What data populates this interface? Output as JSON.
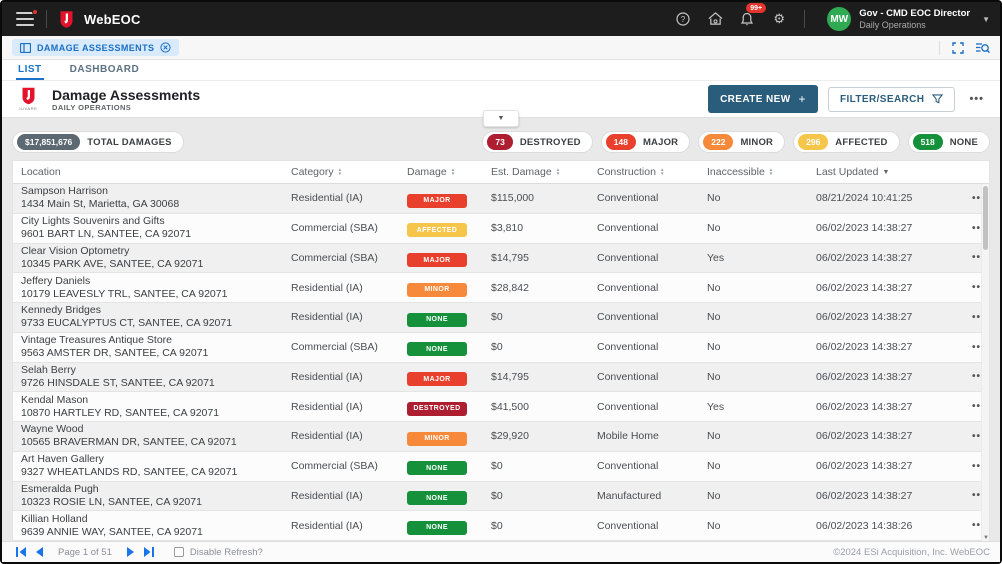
{
  "topbar": {
    "brand": "WebEOC",
    "notification_count": "99+",
    "user": {
      "initials": "MW",
      "name": "Gov - CMD EOC Director",
      "role": "Daily Operations"
    }
  },
  "board_tab": {
    "label": "DAMAGE ASSESSMENTS"
  },
  "view_tabs": {
    "list": "LIST",
    "dashboard": "DASHBOARD"
  },
  "header": {
    "logo_text": "JUVARE",
    "title": "Damage Assessments",
    "subtitle": "DAILY OPERATIONS",
    "create_button": "CREATE NEW",
    "create_plus": "+",
    "filter_button": "FILTER/SEARCH",
    "more_label": "•••"
  },
  "summary": {
    "total": {
      "value": "$17,851,676",
      "label": "TOTAL DAMAGES",
      "color": "#5c6872"
    },
    "counters": [
      {
        "count": "73",
        "label": "DESTROYED",
        "color": "#ad1e30"
      },
      {
        "count": "148",
        "label": "MAJOR",
        "color": "#e8402c"
      },
      {
        "count": "222",
        "label": "MINOR",
        "color": "#f6893a"
      },
      {
        "count": "296",
        "label": "AFFECTED",
        "color": "#f6c64a"
      },
      {
        "count": "518",
        "label": "NONE",
        "color": "#15913b"
      }
    ]
  },
  "damage_colors": {
    "DESTROYED": "#ad1e30",
    "MAJOR": "#e8402c",
    "MINOR": "#f6893a",
    "AFFECTED": "#f6c64a",
    "NONE": "#15913b"
  },
  "table": {
    "columns": [
      {
        "label": "Location",
        "sort": "none"
      },
      {
        "label": "Category",
        "sort": "both"
      },
      {
        "label": "Damage",
        "sort": "both"
      },
      {
        "label": "Est. Damage",
        "sort": "both"
      },
      {
        "label": "Construction",
        "sort": "both"
      },
      {
        "label": "Inaccessible",
        "sort": "both"
      },
      {
        "label": "Last Updated",
        "sort": "desc"
      }
    ],
    "row_menu_label": "•••",
    "rows": [
      {
        "name": "Sampson Harrison",
        "address": "1434 Main St, Marietta, GA 30068",
        "category": "Residential (IA)",
        "damage": "MAJOR",
        "est_damage": "$115,000",
        "construction": "Conventional",
        "inaccessible": "No",
        "last_updated": "08/21/2024 10:41:25"
      },
      {
        "name": "City Lights Souvenirs and Gifts",
        "address": "9601 BART LN, SANTEE, CA 92071",
        "category": "Commercial (SBA)",
        "damage": "AFFECTED",
        "est_damage": "$3,810",
        "construction": "Conventional",
        "inaccessible": "No",
        "last_updated": "06/02/2023 14:38:27"
      },
      {
        "name": "Clear Vision Optometry",
        "address": "10345 PARK AVE, SANTEE, CA 92071",
        "category": "Commercial (SBA)",
        "damage": "MAJOR",
        "est_damage": "$14,795",
        "construction": "Conventional",
        "inaccessible": "Yes",
        "last_updated": "06/02/2023 14:38:27"
      },
      {
        "name": "Jeffery Daniels",
        "address": "10179 LEAVESLY TRL, SANTEE, CA 92071",
        "category": "Residential (IA)",
        "damage": "MINOR",
        "est_damage": "$28,842",
        "construction": "Conventional",
        "inaccessible": "No",
        "last_updated": "06/02/2023 14:38:27"
      },
      {
        "name": "Kennedy Bridges",
        "address": "9733 EUCALYPTUS CT, SANTEE, CA 92071",
        "category": "Residential (IA)",
        "damage": "NONE",
        "est_damage": "$0",
        "construction": "Conventional",
        "inaccessible": "No",
        "last_updated": "06/02/2023 14:38:27"
      },
      {
        "name": "Vintage Treasures Antique Store",
        "address": "9563 AMSTER DR, SANTEE, CA 92071",
        "category": "Commercial (SBA)",
        "damage": "NONE",
        "est_damage": "$0",
        "construction": "Conventional",
        "inaccessible": "No",
        "last_updated": "06/02/2023 14:38:27"
      },
      {
        "name": "Selah Berry",
        "address": "9726 HINSDALE ST, SANTEE, CA 92071",
        "category": "Residential (IA)",
        "damage": "MAJOR",
        "est_damage": "$14,795",
        "construction": "Conventional",
        "inaccessible": "No",
        "last_updated": "06/02/2023 14:38:27"
      },
      {
        "name": "Kendal Mason",
        "address": "10870 HARTLEY RD, SANTEE, CA 92071",
        "category": "Residential (IA)",
        "damage": "DESTROYED",
        "est_damage": "$41,500",
        "construction": "Conventional",
        "inaccessible": "Yes",
        "last_updated": "06/02/2023 14:38:27"
      },
      {
        "name": "Wayne Wood",
        "address": "10565 BRAVERMAN DR, SANTEE, CA 92071",
        "category": "Residential (IA)",
        "damage": "MINOR",
        "est_damage": "$29,920",
        "construction": "Mobile Home",
        "inaccessible": "No",
        "last_updated": "06/02/2023 14:38:27"
      },
      {
        "name": "Art Haven Gallery",
        "address": "9327 WHEATLANDS RD, SANTEE, CA 92071",
        "category": "Commercial (SBA)",
        "damage": "NONE",
        "est_damage": "$0",
        "construction": "Conventional",
        "inaccessible": "No",
        "last_updated": "06/02/2023 14:38:27"
      },
      {
        "name": "Esmeralda Pugh",
        "address": "10323 ROSIE LN, SANTEE, CA 92071",
        "category": "Residential (IA)",
        "damage": "NONE",
        "est_damage": "$0",
        "construction": "Manufactured",
        "inaccessible": "No",
        "last_updated": "06/02/2023 14:38:27"
      },
      {
        "name": "Killian Holland",
        "address": "9639 ANNIE WAY, SANTEE, CA 92071",
        "category": "Residential (IA)",
        "damage": "NONE",
        "est_damage": "$0",
        "construction": "Conventional",
        "inaccessible": "No",
        "last_updated": "06/02/2023 14:38:26"
      }
    ]
  },
  "footer": {
    "page_label": "Page 1 of 51",
    "disable_refresh_label": "Disable Refresh?",
    "copyright": "©2024 ESi Acquisition, Inc. WebEOC"
  }
}
